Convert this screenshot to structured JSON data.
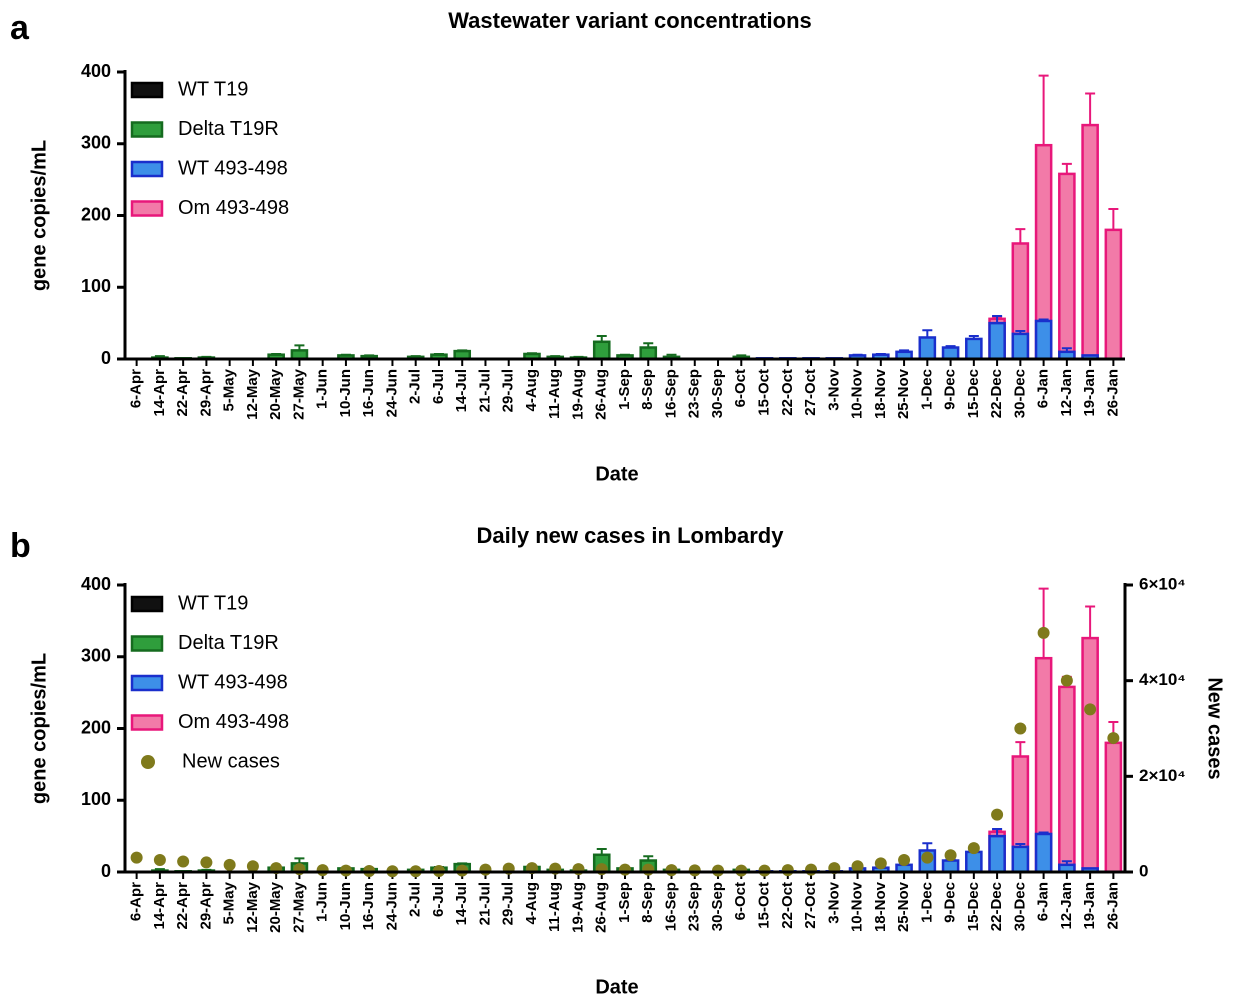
{
  "chart_data": [
    {
      "type": "bar",
      "panel_label": "a",
      "title": "Wastewater variant concentrations",
      "x_label": "Date",
      "y_label": "gene copies/mL",
      "categories": [
        "6-Apr",
        "14-Apr",
        "22-Apr",
        "29-Apr",
        "5-May",
        "12-May",
        "20-May",
        "27-May",
        "1-Jun",
        "10-Jun",
        "16-Jun",
        "24-Jun",
        "2-Jul",
        "6-Jul",
        "14-Jul",
        "21-Jul",
        "29-Jul",
        "4-Aug",
        "11-Aug",
        "19-Aug",
        "26-Aug",
        "1-Sep",
        "8-Sep",
        "16-Sep",
        "23-Sep",
        "30-Sep",
        "6-Oct",
        "15-Oct",
        "22-Oct",
        "27-Oct",
        "3-Nov",
        "10-Nov",
        "18-Nov",
        "25-Nov",
        "1-Dec",
        "9-Dec",
        "15-Dec",
        "22-Dec",
        "30-Dec",
        "6-Jan",
        "12-Jan",
        "19-Jan",
        "26-Jan"
      ],
      "ylim": [
        0,
        400
      ],
      "yticks": [
        0,
        100,
        200,
        300,
        400
      ],
      "legend": "top-left",
      "series": [
        {
          "name": "WT T19",
          "color": "#111111",
          "edge_color": "#000000",
          "values": [
            0,
            0,
            0,
            0,
            0,
            0,
            0,
            0,
            0,
            0,
            0,
            0,
            0,
            0,
            0,
            0,
            0,
            0,
            0,
            0,
            0,
            0,
            0,
            0,
            0,
            0,
            0,
            0,
            0,
            0,
            0,
            0,
            0,
            0,
            0,
            0,
            0,
            0,
            0,
            0,
            0,
            0,
            0
          ]
        },
        {
          "name": "Delta T19R",
          "color": "#2f9e3c",
          "edge_color": "#156b1f",
          "values": [
            0,
            2,
            1,
            2,
            0,
            0,
            6,
            12,
            0,
            5,
            4,
            0,
            3,
            6,
            11,
            0,
            0,
            7,
            3,
            2,
            24,
            5,
            16,
            3,
            0,
            0,
            3,
            0,
            0,
            0,
            0,
            0,
            0,
            0,
            0,
            0,
            0,
            0,
            0,
            0,
            0,
            0,
            0
          ],
          "errors": [
            null,
            2,
            null,
            1,
            null,
            null,
            1,
            7,
            null,
            1,
            1,
            null,
            1,
            1,
            1,
            null,
            null,
            1,
            1,
            1,
            8,
            1,
            6,
            3,
            null,
            null,
            2,
            null,
            null,
            null,
            null,
            null,
            null,
            null,
            null,
            null,
            null,
            null,
            null,
            null,
            null,
            null,
            null
          ]
        },
        {
          "name": "WT 493-498",
          "color": "#3d8fe8",
          "edge_color": "#1a2fcc",
          "values": [
            0,
            0,
            0,
            0,
            0,
            0,
            0,
            0,
            0,
            0,
            0,
            0,
            0,
            0,
            0,
            0,
            0,
            0,
            0,
            0,
            0,
            0,
            0,
            0,
            0,
            0,
            0,
            1,
            1,
            1,
            1,
            5,
            6,
            10,
            30,
            16,
            28,
            50,
            35,
            53,
            10,
            5,
            0
          ],
          "errors": [
            null,
            null,
            null,
            null,
            null,
            null,
            null,
            null,
            null,
            null,
            null,
            null,
            null,
            null,
            null,
            null,
            null,
            null,
            null,
            null,
            null,
            null,
            null,
            null,
            null,
            null,
            null,
            null,
            null,
            null,
            null,
            1,
            1,
            2,
            10,
            2,
            4,
            10,
            4,
            2,
            5,
            null,
            null
          ]
        },
        {
          "name": "Om 493-498",
          "color": "#f27aa8",
          "edge_color": "#e8177a",
          "values": [
            0,
            0,
            0,
            0,
            0,
            0,
            0,
            0,
            0,
            0,
            0,
            0,
            0,
            0,
            0,
            0,
            0,
            0,
            0,
            0,
            0,
            0,
            0,
            0,
            0,
            0,
            0,
            0,
            0,
            0,
            0,
            0,
            0,
            0,
            0,
            0,
            0,
            56,
            161,
            298,
            258,
            326,
            180
          ],
          "errors": [
            null,
            null,
            null,
            null,
            null,
            null,
            null,
            null,
            null,
            null,
            null,
            null,
            null,
            null,
            null,
            null,
            null,
            null,
            null,
            null,
            null,
            null,
            null,
            null,
            null,
            null,
            null,
            null,
            null,
            null,
            null,
            null,
            null,
            null,
            null,
            null,
            null,
            3,
            20,
            97,
            14,
            44,
            29
          ]
        }
      ]
    },
    {
      "type": "bar",
      "panel_label": "b",
      "title": "Daily new cases in Lombardy",
      "x_label": "Date",
      "y_label": "gene copies/mL",
      "y2_label": "New cases",
      "categories": [
        "6-Apr",
        "14-Apr",
        "22-Apr",
        "29-Apr",
        "5-May",
        "12-May",
        "20-May",
        "27-May",
        "1-Jun",
        "10-Jun",
        "16-Jun",
        "24-Jun",
        "2-Jul",
        "6-Jul",
        "14-Jul",
        "21-Jul",
        "29-Jul",
        "4-Aug",
        "11-Aug",
        "19-Aug",
        "26-Aug",
        "1-Sep",
        "8-Sep",
        "16-Sep",
        "23-Sep",
        "30-Sep",
        "6-Oct",
        "15-Oct",
        "22-Oct",
        "27-Oct",
        "3-Nov",
        "10-Nov",
        "18-Nov",
        "25-Nov",
        "1-Dec",
        "9-Dec",
        "15-Dec",
        "22-Dec",
        "30-Dec",
        "6-Jan",
        "12-Jan",
        "19-Jan",
        "26-Jan"
      ],
      "ylim": [
        0,
        400
      ],
      "yticks": [
        0,
        100,
        200,
        300,
        400
      ],
      "y2lim": [
        0,
        60000
      ],
      "y2ticks": [
        0,
        {
          "value": 20000,
          "label": "2×10⁴"
        },
        {
          "value": 40000,
          "label": "4×10⁴"
        },
        {
          "value": 60000,
          "label": "6×10⁴"
        }
      ],
      "legend": "top-left",
      "series": [
        {
          "name": "WT T19",
          "color": "#111111",
          "edge_color": "#000000",
          "values": [
            0,
            0,
            0,
            0,
            0,
            0,
            0,
            0,
            0,
            0,
            0,
            0,
            0,
            0,
            0,
            0,
            0,
            0,
            0,
            0,
            0,
            0,
            0,
            0,
            0,
            0,
            0,
            0,
            0,
            0,
            0,
            0,
            0,
            0,
            0,
            0,
            0,
            0,
            0,
            0,
            0,
            0,
            0
          ]
        },
        {
          "name": "Delta T19R",
          "color": "#2f9e3c",
          "edge_color": "#156b1f",
          "values": [
            0,
            2,
            1,
            2,
            0,
            0,
            6,
            12,
            0,
            5,
            4,
            0,
            3,
            6,
            11,
            0,
            0,
            7,
            3,
            2,
            24,
            5,
            16,
            3,
            0,
            0,
            3,
            0,
            0,
            0,
            0,
            0,
            0,
            0,
            0,
            0,
            0,
            0,
            0,
            0,
            0,
            0,
            0
          ],
          "errors": [
            null,
            2,
            null,
            1,
            null,
            null,
            1,
            7,
            null,
            1,
            1,
            null,
            1,
            1,
            1,
            null,
            null,
            1,
            1,
            1,
            8,
            1,
            6,
            3,
            null,
            null,
            2,
            null,
            null,
            null,
            null,
            null,
            null,
            null,
            null,
            null,
            null,
            null,
            null,
            null,
            null,
            null,
            null
          ]
        },
        {
          "name": "WT 493-498",
          "color": "#3d8fe8",
          "edge_color": "#1a2fcc",
          "values": [
            0,
            0,
            0,
            0,
            0,
            0,
            0,
            0,
            0,
            0,
            0,
            0,
            0,
            0,
            0,
            0,
            0,
            0,
            0,
            0,
            0,
            0,
            0,
            0,
            0,
            0,
            0,
            1,
            1,
            1,
            1,
            5,
            6,
            10,
            30,
            16,
            28,
            50,
            35,
            53,
            10,
            5,
            0
          ],
          "errors": [
            null,
            null,
            null,
            null,
            null,
            null,
            null,
            null,
            null,
            null,
            null,
            null,
            null,
            null,
            null,
            null,
            null,
            null,
            null,
            null,
            null,
            null,
            null,
            null,
            null,
            null,
            null,
            null,
            null,
            null,
            null,
            1,
            1,
            2,
            10,
            2,
            4,
            10,
            4,
            2,
            5,
            null,
            null
          ]
        },
        {
          "name": "Om 493-498",
          "color": "#f27aa8",
          "edge_color": "#e8177a",
          "values": [
            0,
            0,
            0,
            0,
            0,
            0,
            0,
            0,
            0,
            0,
            0,
            0,
            0,
            0,
            0,
            0,
            0,
            0,
            0,
            0,
            0,
            0,
            0,
            0,
            0,
            0,
            0,
            0,
            0,
            0,
            0,
            0,
            0,
            0,
            0,
            0,
            0,
            56,
            161,
            298,
            258,
            326,
            180
          ],
          "errors": [
            null,
            null,
            null,
            null,
            null,
            null,
            null,
            null,
            null,
            null,
            null,
            null,
            null,
            null,
            null,
            null,
            null,
            null,
            null,
            null,
            null,
            null,
            null,
            null,
            null,
            null,
            null,
            null,
            null,
            null,
            null,
            null,
            null,
            null,
            null,
            null,
            null,
            3,
            20,
            97,
            14,
            44,
            29
          ]
        },
        {
          "name": "New cases",
          "type": "scatter",
          "axis": "y2",
          "color": "#7f7a1c",
          "values": [
            3000,
            2500,
            2200,
            2000,
            1500,
            1200,
            800,
            600,
            400,
            300,
            200,
            150,
            150,
            200,
            300,
            500,
            700,
            800,
            700,
            600,
            600,
            500,
            500,
            400,
            350,
            300,
            300,
            300,
            400,
            500,
            800,
            1200,
            1800,
            2500,
            3000,
            3500,
            5000,
            12000,
            30000,
            50000,
            40000,
            34000,
            28000
          ]
        }
      ]
    }
  ]
}
